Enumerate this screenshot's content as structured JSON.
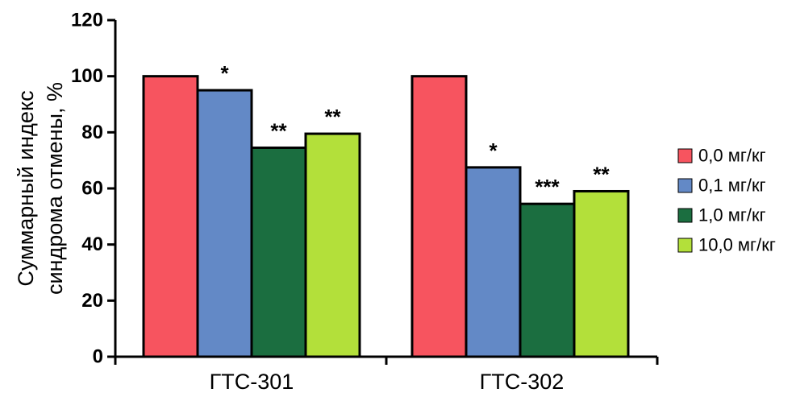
{
  "chart_data": {
    "type": "bar",
    "categories": [
      "ГТС-301",
      "ГТС-302"
    ],
    "series": [
      {
        "name": "0,0 мг/кг",
        "color": "#f7545f",
        "values": [
          100,
          100
        ],
        "annotations": [
          "",
          ""
        ]
      },
      {
        "name": "0,1 мг/кг",
        "color": "#6389c6",
        "values": [
          95,
          67.5
        ],
        "annotations": [
          "*",
          "*"
        ]
      },
      {
        "name": "1,0 мг/кг",
        "color": "#1b6e40",
        "values": [
          74.5,
          54.5
        ],
        "annotations": [
          "**",
          "***"
        ]
      },
      {
        "name": "10,0 мг/кг",
        "color": "#b3e03a",
        "values": [
          79.5,
          59
        ],
        "annotations": [
          "**",
          "**"
        ]
      }
    ],
    "ylabel_lines": [
      "Суммарный индекс",
      "синдрома отмены, %"
    ],
    "ylim": [
      0,
      120
    ],
    "yticks": [
      0,
      20,
      40,
      60,
      80,
      100,
      120
    ],
    "grid": false,
    "legend_position": "right"
  }
}
